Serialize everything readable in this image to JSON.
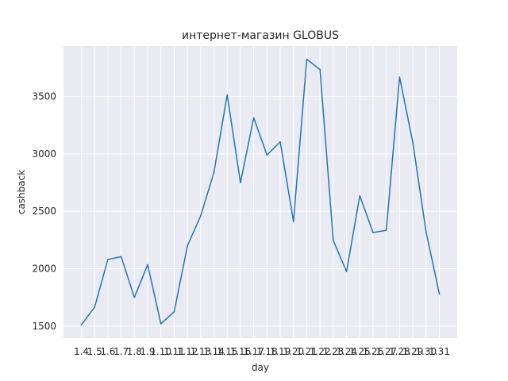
{
  "chart_data": {
    "type": "line",
    "title": "интернет-магазин GLOBUS",
    "xlabel": "day",
    "ylabel": "cashback",
    "categories": [
      "1.4",
      "1.5",
      "1.6",
      "1.7",
      "1.8",
      "1.9",
      "1.10",
      "1.11",
      "1.12",
      "1.13",
      "1.14",
      "1.15",
      "1.16",
      "1.17",
      "1.18",
      "1.19",
      "1.20",
      "1.21",
      "1.22",
      "1.23",
      "1.24",
      "1.25",
      "1.26",
      "1.27",
      "1.28",
      "1.29",
      "1.30",
      "1.31"
    ],
    "series": [
      {
        "values": [
          1510,
          1665,
          2080,
          2105,
          1750,
          2035,
          1520,
          1625,
          2200,
          2460,
          2840,
          3515,
          2750,
          3315,
          2990,
          3105,
          2410,
          3825,
          3735,
          2245,
          1975,
          2635,
          2315,
          2335,
          3670,
          3100,
          2320,
          1780
        ]
      }
    ],
    "yticks": [
      1500,
      2000,
      2500,
      3000,
      3500
    ],
    "ylim": [
      1395,
      3940
    ],
    "grid": true,
    "background": "#EAEAF2",
    "line_color": "#1f77b4"
  }
}
